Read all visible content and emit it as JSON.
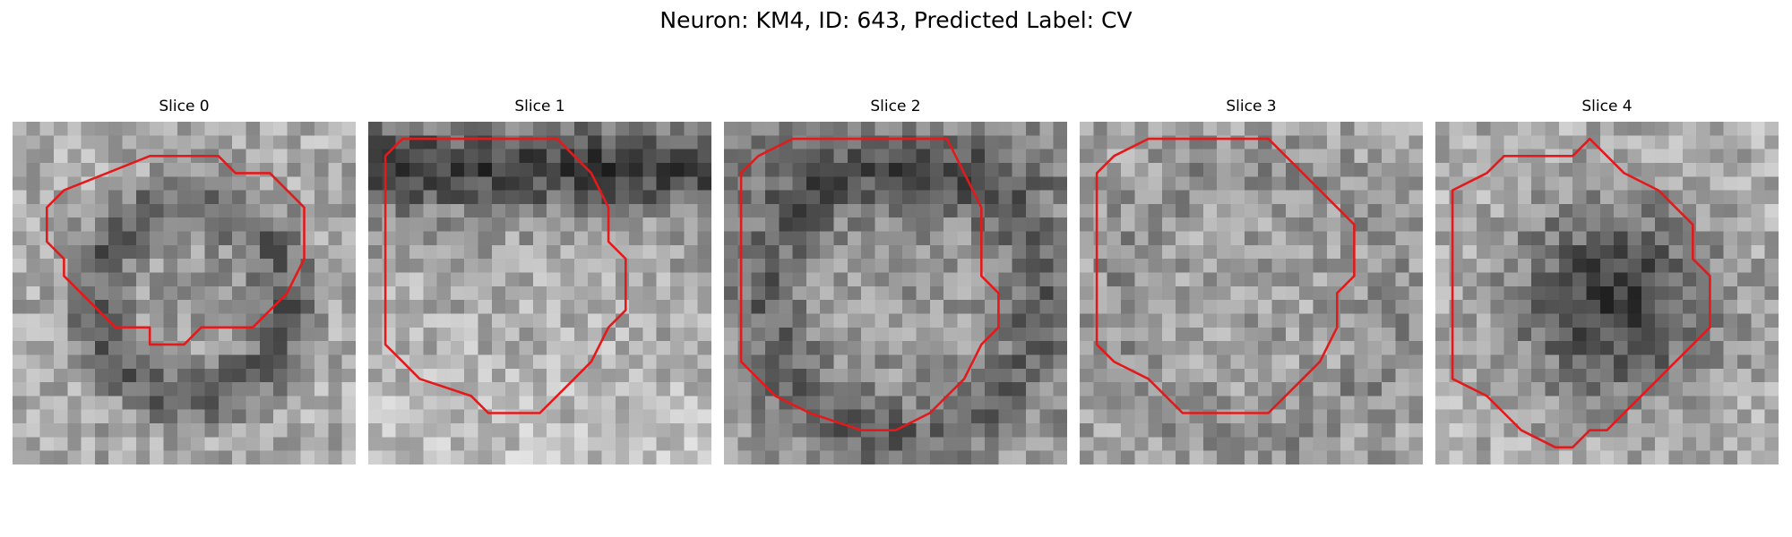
{
  "figure": {
    "title": "Neuron: KM4, ID: 643, Predicted Label: CV"
  },
  "panels": [
    {
      "title": "Slice 0",
      "style": "ring",
      "contour": [
        [
          8,
          2
        ],
        [
          12,
          2
        ],
        [
          13,
          3
        ],
        [
          15,
          3
        ],
        [
          17,
          5
        ],
        [
          17,
          8
        ],
        [
          16,
          10
        ],
        [
          15,
          11
        ],
        [
          14,
          12
        ],
        [
          11,
          12
        ],
        [
          10,
          13
        ],
        [
          8,
          13
        ],
        [
          8,
          12
        ],
        [
          6,
          12
        ],
        [
          3,
          9
        ],
        [
          3,
          8
        ],
        [
          2,
          7
        ],
        [
          2,
          5
        ],
        [
          3,
          4
        ]
      ]
    },
    {
      "title": "Slice 1",
      "style": "topdark",
      "contour": [
        [
          4,
          1
        ],
        [
          11,
          1
        ],
        [
          12,
          2
        ],
        [
          13,
          3
        ],
        [
          14,
          5
        ],
        [
          14,
          7
        ],
        [
          15,
          8
        ],
        [
          15,
          11
        ],
        [
          14,
          12
        ],
        [
          13,
          14
        ],
        [
          12,
          15
        ],
        [
          10,
          17
        ],
        [
          7,
          17
        ],
        [
          6,
          16
        ],
        [
          3,
          15
        ],
        [
          2,
          14
        ],
        [
          1,
          13
        ],
        [
          1,
          2
        ],
        [
          2,
          1
        ]
      ]
    },
    {
      "title": "Slice 2",
      "style": "rim",
      "contour": [
        [
          5,
          1
        ],
        [
          13,
          1
        ],
        [
          14,
          3
        ],
        [
          15,
          5
        ],
        [
          15,
          9
        ],
        [
          16,
          10
        ],
        [
          16,
          12
        ],
        [
          15,
          13
        ],
        [
          14,
          15
        ],
        [
          12,
          17
        ],
        [
          10,
          18
        ],
        [
          8,
          18
        ],
        [
          5,
          17
        ],
        [
          3,
          16
        ],
        [
          2,
          15
        ],
        [
          1,
          14
        ],
        [
          1,
          3
        ],
        [
          2,
          2
        ],
        [
          4,
          1
        ]
      ]
    },
    {
      "title": "Slice 3",
      "style": "uniform",
      "contour": [
        [
          4,
          1
        ],
        [
          11,
          1
        ],
        [
          12,
          2
        ],
        [
          14,
          4
        ],
        [
          15,
          5
        ],
        [
          16,
          6
        ],
        [
          16,
          9
        ],
        [
          15,
          10
        ],
        [
          15,
          12
        ],
        [
          14,
          14
        ],
        [
          13,
          15
        ],
        [
          11,
          17
        ],
        [
          6,
          17
        ],
        [
          5,
          16
        ],
        [
          4,
          15
        ],
        [
          2,
          14
        ],
        [
          1,
          13
        ],
        [
          1,
          3
        ],
        [
          2,
          2
        ]
      ]
    },
    {
      "title": "Slice 4",
      "style": "darkcell",
      "contour": [
        [
          5,
          2
        ],
        [
          8,
          2
        ],
        [
          9,
          1
        ],
        [
          10,
          2
        ],
        [
          11,
          3
        ],
        [
          13,
          4
        ],
        [
          14,
          5
        ],
        [
          15,
          6
        ],
        [
          15,
          8
        ],
        [
          16,
          9
        ],
        [
          16,
          12
        ],
        [
          15,
          13
        ],
        [
          14,
          14
        ],
        [
          13,
          15
        ],
        [
          11,
          17
        ],
        [
          10,
          18
        ],
        [
          9,
          18
        ],
        [
          8,
          19
        ],
        [
          7,
          19
        ],
        [
          5,
          18
        ],
        [
          4,
          17
        ],
        [
          3,
          16
        ],
        [
          1,
          15
        ],
        [
          1,
          4
        ],
        [
          3,
          3
        ],
        [
          4,
          2
        ]
      ]
    }
  ],
  "colors": {
    "contour": "#e31a1c",
    "background": "#ffffff"
  }
}
